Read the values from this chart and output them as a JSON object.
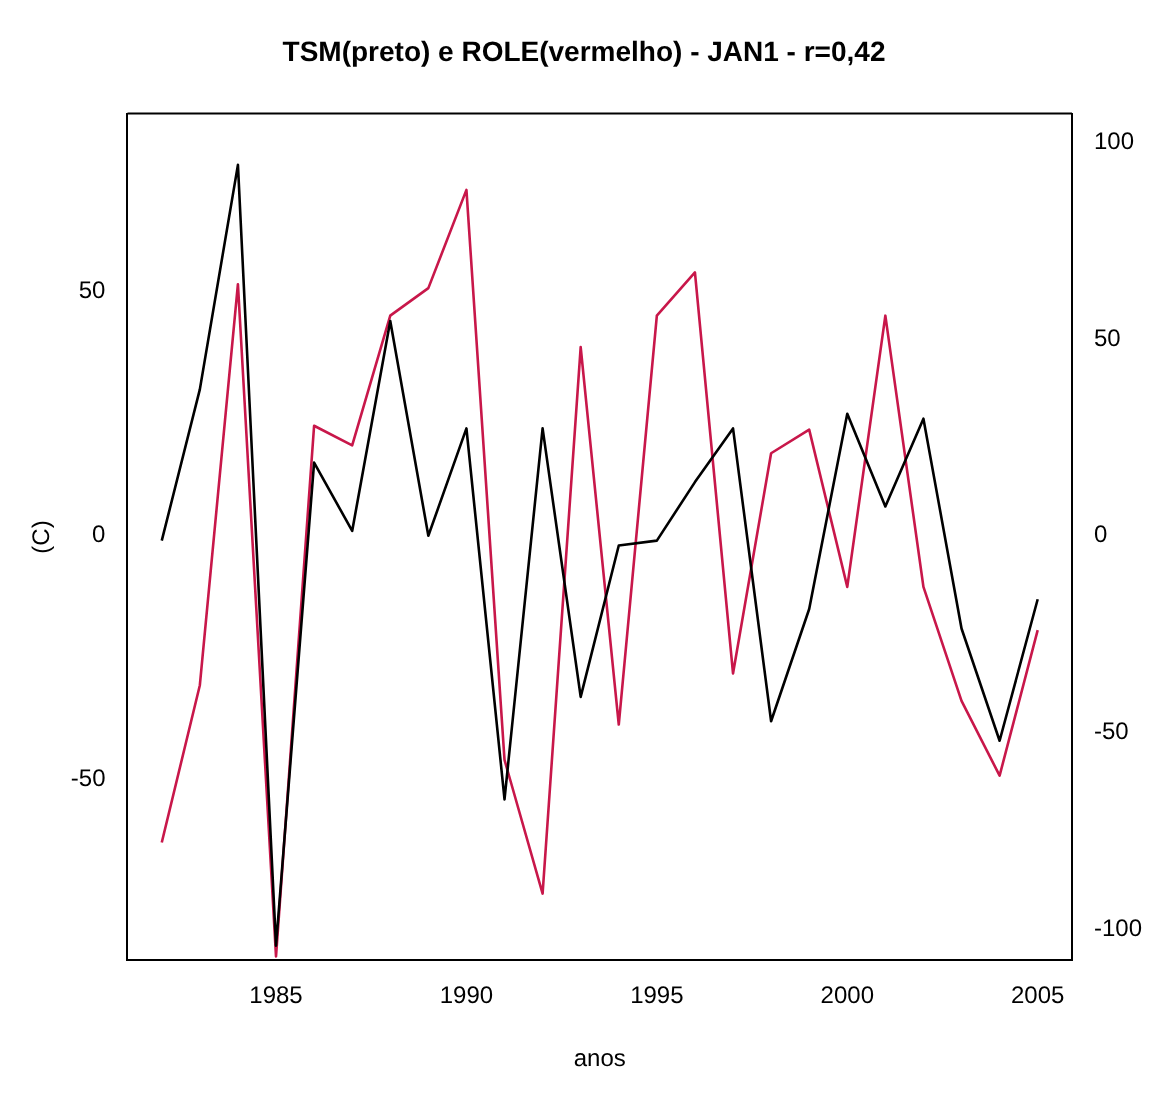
{
  "chart_data": {
    "type": "line",
    "title": "TSM(preto) e ROLE(vermelho) - JAN1 - r=0,42",
    "xlabel": "anos",
    "ylabel": "(C)",
    "x": [
      1982,
      1983,
      1984,
      1985,
      1986,
      1987,
      1988,
      1989,
      1990,
      1991,
      1992,
      1993,
      1994,
      1995,
      1996,
      1997,
      1998,
      1999,
      2000,
      2001,
      2002,
      2003,
      2004,
      2005
    ],
    "xlim": [
      1981.1,
      2005.9
    ],
    "xticks": [
      1985,
      1990,
      1995,
      2000,
      2005
    ],
    "ylim": [
      -87,
      86.5
    ],
    "yticks": [
      -50,
      0,
      50
    ],
    "y2lim": [
      -108,
      107.4
    ],
    "y2ticks": [
      -100,
      -50,
      0,
      50,
      100
    ],
    "series": [
      {
        "color": "#000000",
        "values": [
          -1,
          30,
          76,
          -84,
          15,
          1,
          44,
          0,
          22,
          -54,
          22,
          -33,
          -2,
          -1,
          11,
          22,
          -38,
          -15,
          25,
          6,
          24,
          -19,
          -42,
          -13
        ]
      },
      {
        "color": "#c8174a",
        "axis": "y2",
        "values": [
          -78,
          -38,
          64,
          -107,
          28,
          23,
          56,
          63,
          88,
          -57,
          -91,
          48,
          -48,
          56,
          67,
          -35,
          21,
          27,
          -13,
          56,
          -13,
          -42,
          -61,
          -24
        ]
      }
    ],
    "grid": false,
    "legend": false,
    "marker": "none",
    "line_style": "solid"
  }
}
